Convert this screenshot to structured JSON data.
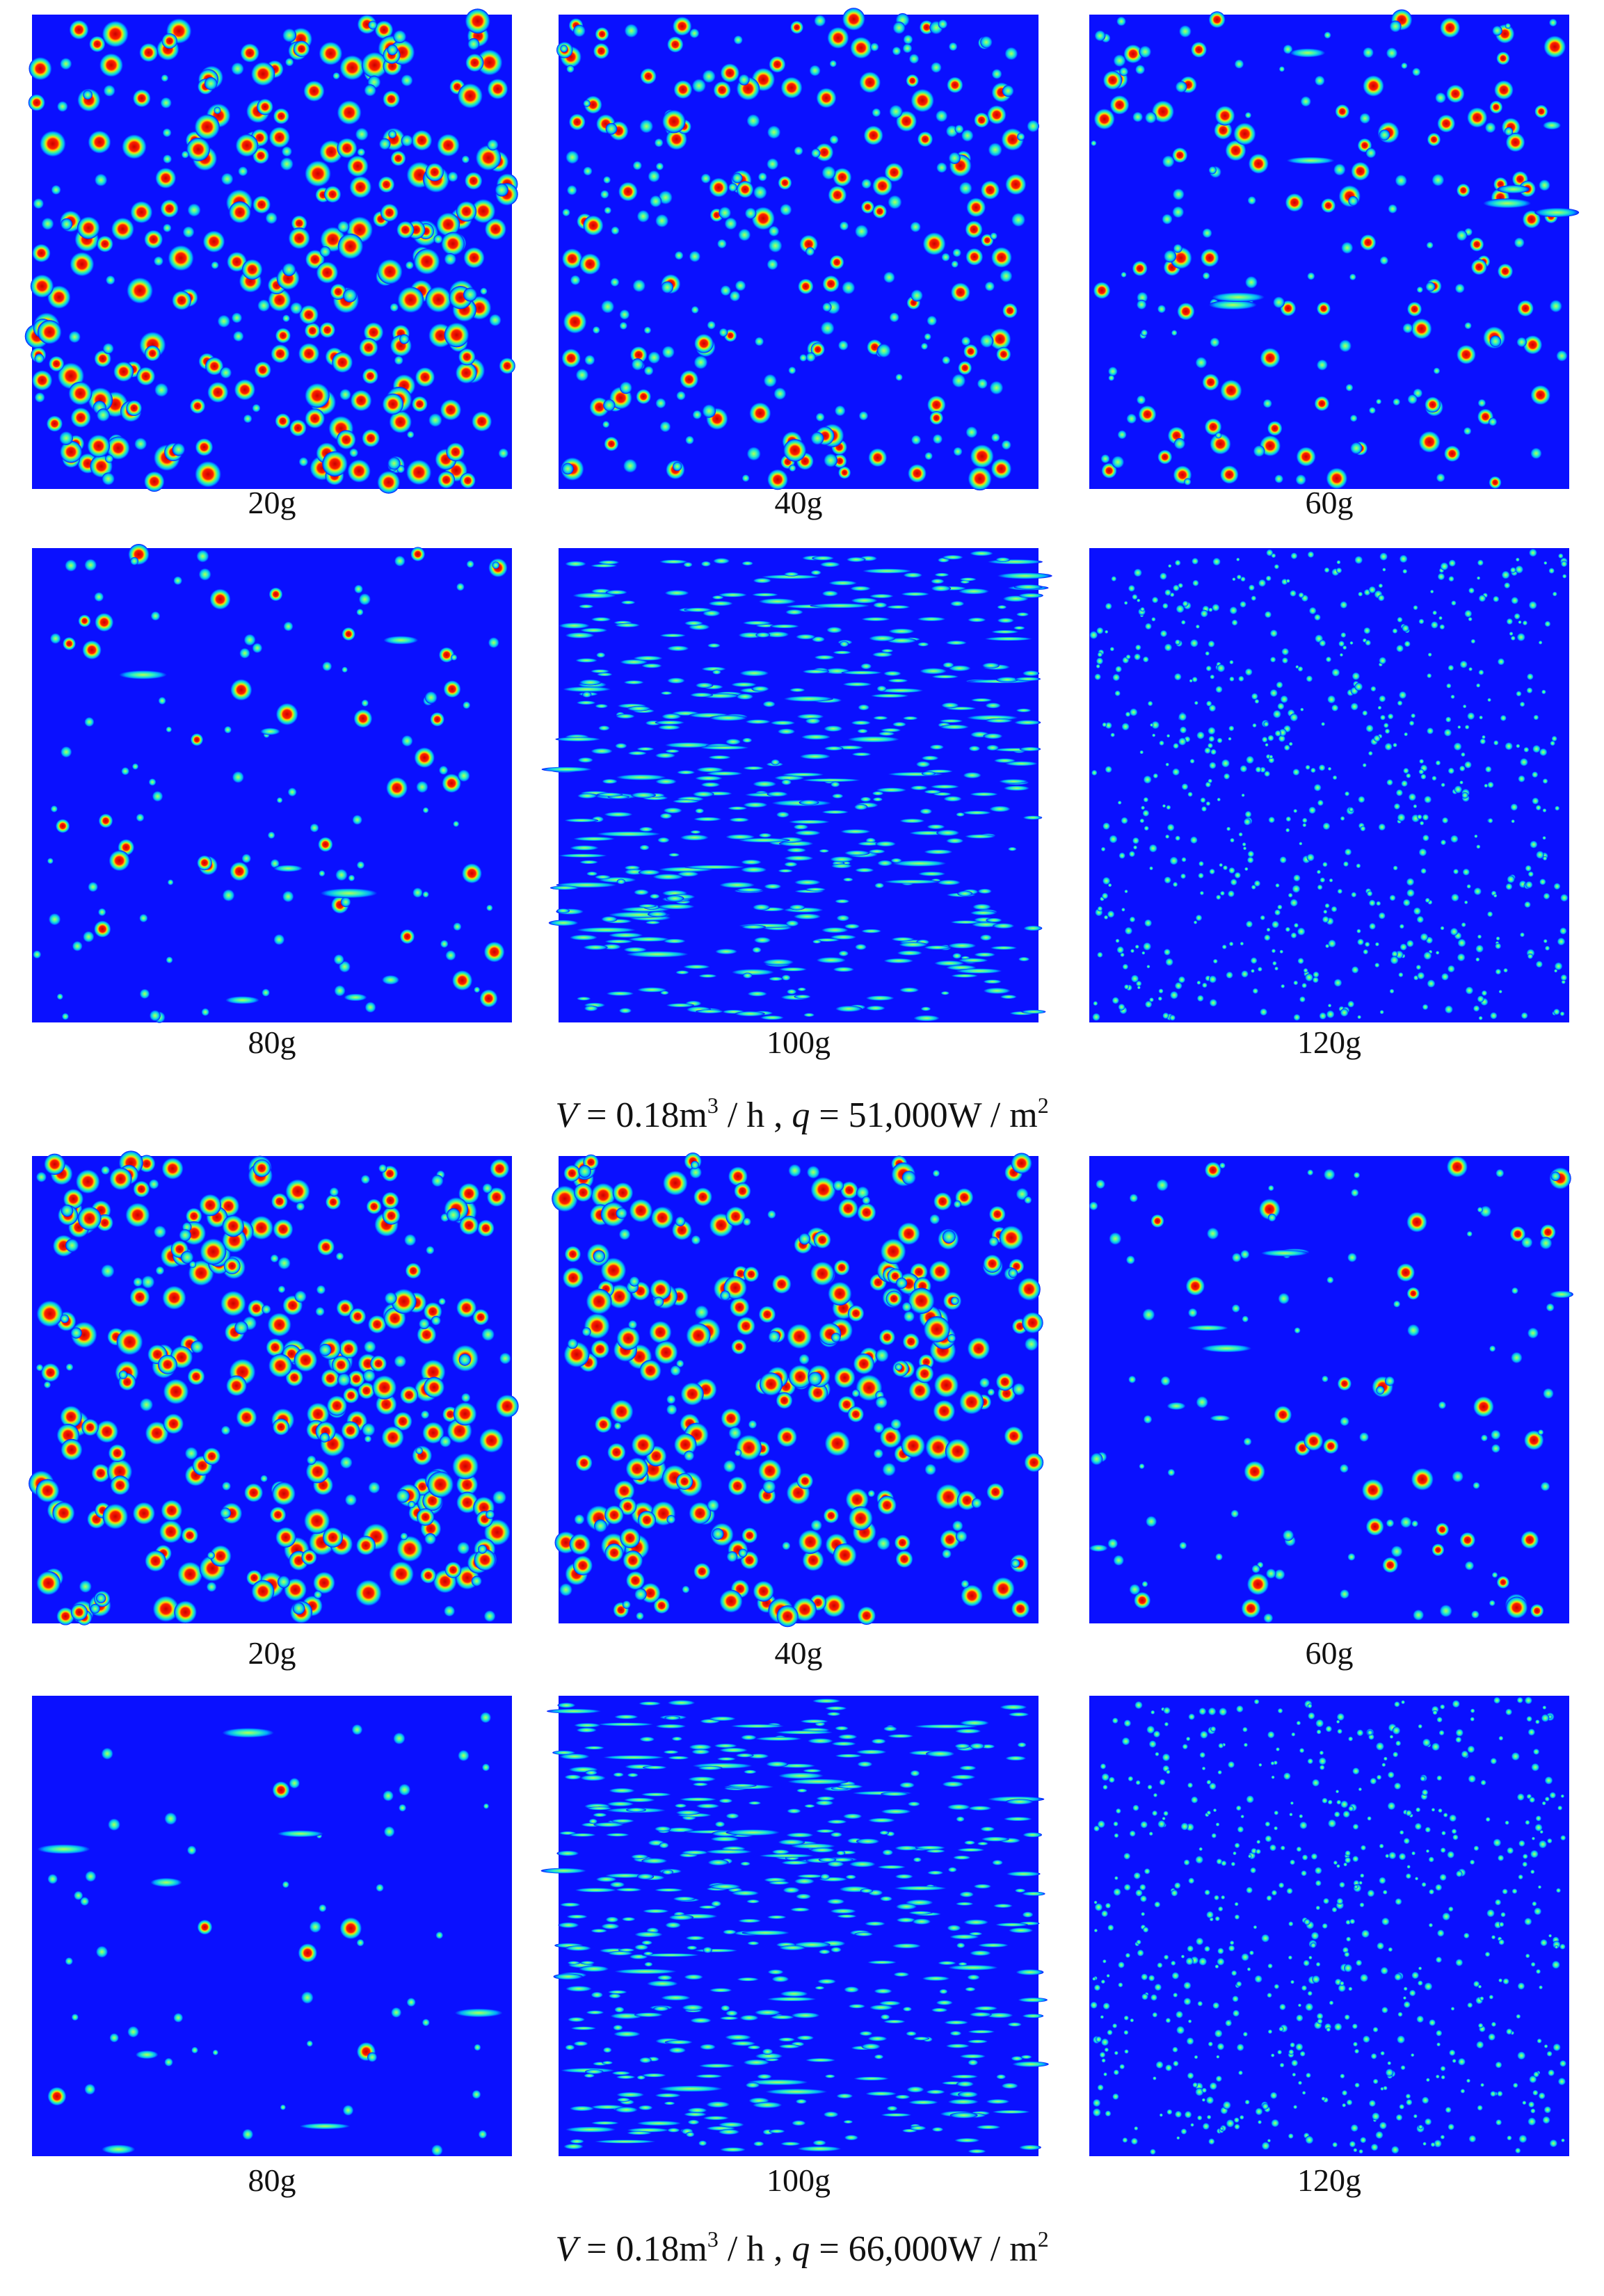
{
  "groups": [
    {
      "panels": [
        {
          "label": "20g"
        },
        {
          "label": "40g"
        },
        {
          "label": "60g"
        },
        {
          "label": "80g"
        },
        {
          "label": "100g"
        },
        {
          "label": "120g"
        }
      ],
      "caption": [
        "V",
        " = 0.18m",
        "3",
        " / h , ",
        "q",
        " = 51,000W / m",
        "2"
      ]
    },
    {
      "panels": [
        {
          "label": "20g"
        },
        {
          "label": "40g"
        },
        {
          "label": "60g"
        },
        {
          "label": "80g"
        },
        {
          "label": "100g"
        },
        {
          "label": "120g"
        }
      ],
      "caption": [
        "V",
        " = 0.18m",
        "3",
        " / h , ",
        "q",
        " = 66,000W / m",
        "2"
      ]
    }
  ]
}
